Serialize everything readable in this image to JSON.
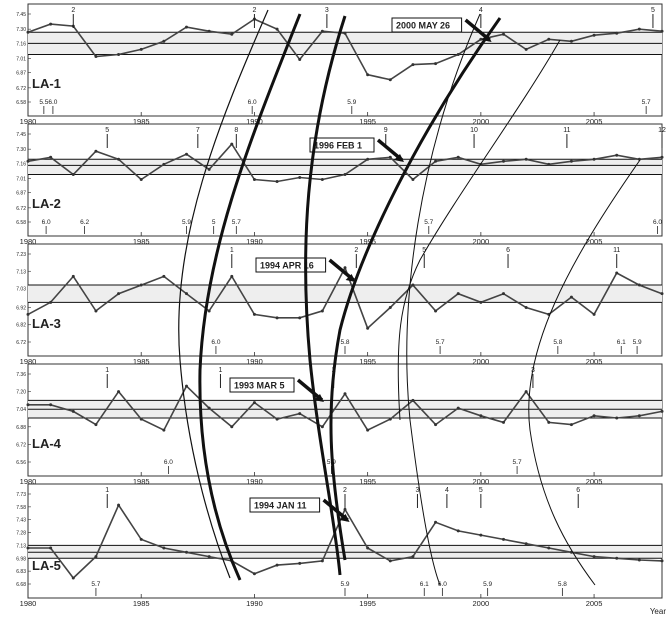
{
  "figure": {
    "year_axis_label": "Year",
    "year_ticks": [
      "1980",
      "1985",
      "1990",
      "1995",
      "2000",
      "2005"
    ]
  },
  "chart_data": [
    {
      "type": "line",
      "panel": "LA-1",
      "title": "LA-1",
      "x_range": [
        1980,
        2008
      ],
      "y_ticks": [
        "7.45",
        "7.30",
        "7.16",
        "7.01",
        "6.87",
        "6.72",
        "6.58"
      ],
      "reference_lines": [
        7.27,
        7.16,
        7.05
      ],
      "annotation": "2000 MAY 26",
      "marker_labels": [
        {
          "year": 1982,
          "label": "2"
        },
        {
          "year": 1990,
          "label": "2"
        },
        {
          "year": 1993.2,
          "label": "3"
        },
        {
          "year": 2000,
          "label": "4"
        },
        {
          "year": 2007.6,
          "label": "5"
        }
      ],
      "magnitude_labels": [
        {
          "year": 1980.7,
          "label": "5.5"
        },
        {
          "year": 1981.1,
          "label": "6.0"
        },
        {
          "year": 1989.9,
          "label": "6.0"
        },
        {
          "year": 1994.3,
          "label": "5.9"
        },
        {
          "year": 2007.3,
          "label": "5.7"
        }
      ],
      "series": [
        {
          "x": [
            1980,
            1981,
            1982,
            1983,
            1984,
            1985,
            1986,
            1987,
            1988,
            1989,
            1990,
            1991,
            1992,
            1993,
            1994,
            1995,
            1996,
            1997,
            1998,
            1999,
            2000,
            2001,
            2002,
            2003,
            2004,
            2005,
            2006,
            2007,
            2008
          ],
          "y": [
            7.27,
            7.35,
            7.33,
            7.03,
            7.05,
            7.1,
            7.18,
            7.32,
            7.28,
            7.25,
            7.4,
            7.3,
            7.0,
            7.28,
            7.26,
            6.85,
            6.8,
            6.95,
            6.96,
            7.05,
            7.2,
            7.25,
            7.1,
            7.2,
            7.18,
            7.24,
            7.26,
            7.3,
            7.28
          ]
        }
      ]
    },
    {
      "type": "line",
      "panel": "LA-2",
      "title": "LA-2",
      "x_range": [
        1980,
        2008
      ],
      "y_ticks": [
        "7.45",
        "7.30",
        "7.16",
        "7.01",
        "6.87",
        "6.72",
        "6.58"
      ],
      "reference_lines": [
        7.2,
        7.14,
        7.05
      ],
      "annotation": "1996 FEB 1",
      "marker_labels": [
        {
          "year": 1983.5,
          "label": "5"
        },
        {
          "year": 1987.5,
          "label": "7"
        },
        {
          "year": 1989.2,
          "label": "8"
        },
        {
          "year": 1995.8,
          "label": "9"
        },
        {
          "year": 1999.7,
          "label": "10"
        },
        {
          "year": 2003.8,
          "label": "11"
        },
        {
          "year": 2008,
          "label": "12"
        }
      ],
      "magnitude_labels": [
        {
          "year": 1980.8,
          "label": "6.0"
        },
        {
          "year": 1982.5,
          "label": "6.2"
        },
        {
          "year": 1987.0,
          "label": "5.9"
        },
        {
          "year": 1988.2,
          "label": "5"
        },
        {
          "year": 1989.2,
          "label": "5.7"
        },
        {
          "year": 1997.7,
          "label": "5.7"
        },
        {
          "year": 2007.8,
          "label": "6.0"
        }
      ],
      "series": [
        {
          "x": [
            1980,
            1981,
            1982,
            1983,
            1984,
            1985,
            1986,
            1987,
            1988,
            1989,
            1990,
            1991,
            1992,
            1993,
            1994,
            1995,
            1996,
            1997,
            1998,
            1999,
            2000,
            2001,
            2002,
            2003,
            2004,
            2005,
            2006,
            2007,
            2008
          ],
          "y": [
            7.18,
            7.22,
            7.05,
            7.28,
            7.2,
            7.0,
            7.15,
            7.25,
            7.1,
            7.35,
            7.0,
            6.98,
            7.02,
            7.0,
            7.05,
            7.2,
            7.22,
            7.0,
            7.18,
            7.22,
            7.15,
            7.18,
            7.2,
            7.15,
            7.18,
            7.2,
            7.24,
            7.2,
            7.22
          ]
        }
      ]
    },
    {
      "type": "line",
      "panel": "LA-3",
      "title": "LA-3",
      "x_range": [
        1980,
        2008
      ],
      "y_ticks": [
        "7.23",
        "7.13",
        "7.03",
        "6.92",
        "6.82",
        "6.72"
      ],
      "reference_lines": [
        7.05,
        6.95
      ],
      "annotation": "1994 APR 16",
      "marker_labels": [
        {
          "year": 1989,
          "label": "1"
        },
        {
          "year": 1994.5,
          "label": "2"
        },
        {
          "year": 1997.5,
          "label": "5"
        },
        {
          "year": 2001.2,
          "label": "6"
        },
        {
          "year": 2006,
          "label": "11"
        }
      ],
      "magnitude_labels": [
        {
          "year": 1988.3,
          "label": "6.0"
        },
        {
          "year": 1994.0,
          "label": "5.8"
        },
        {
          "year": 1998.2,
          "label": "5.7"
        },
        {
          "year": 2003.4,
          "label": "5.8"
        },
        {
          "year": 2006.2,
          "label": "6.1"
        },
        {
          "year": 2006.9,
          "label": "5.9"
        }
      ],
      "series": [
        {
          "x": [
            1980,
            1981,
            1982,
            1983,
            1984,
            1985,
            1986,
            1987,
            1988,
            1989,
            1990,
            1991,
            1992,
            1993,
            1994,
            1995,
            1996,
            1997,
            1998,
            1999,
            2000,
            2001,
            2002,
            2003,
            2004,
            2005,
            2006,
            2007,
            2008
          ],
          "y": [
            6.88,
            6.95,
            7.1,
            6.9,
            7.0,
            7.05,
            7.1,
            7.0,
            6.9,
            7.1,
            6.88,
            6.86,
            6.86,
            6.9,
            7.15,
            6.8,
            6.92,
            7.05,
            6.9,
            7.0,
            6.95,
            7.0,
            6.92,
            6.88,
            6.98,
            6.88,
            7.12,
            7.05,
            7.0
          ]
        }
      ]
    },
    {
      "type": "line",
      "panel": "LA-4",
      "title": "LA-4",
      "x_range": [
        1980,
        2008
      ],
      "y_ticks": [
        "7.36",
        "7.20",
        "7.04",
        "6.88",
        "6.72",
        "6.56"
      ],
      "reference_lines": [
        7.12,
        7.04,
        6.96
      ],
      "annotation": "1993 MAR 5",
      "marker_labels": [
        {
          "year": 1983.5,
          "label": "1"
        },
        {
          "year": 1988.5,
          "label": "1"
        },
        {
          "year": 1993.5,
          "label": "2"
        },
        {
          "year": 2002.3,
          "label": "3"
        }
      ],
      "magnitude_labels": [
        {
          "year": 1986.2,
          "label": "6.0"
        },
        {
          "year": 1993.4,
          "label": "5.9"
        },
        {
          "year": 2001.6,
          "label": "5.7"
        }
      ],
      "series": [
        {
          "x": [
            1980,
            1981,
            1982,
            1983,
            1984,
            1985,
            1986,
            1987,
            1988,
            1989,
            1990,
            1991,
            1992,
            1993,
            1994,
            1995,
            1996,
            1997,
            1998,
            1999,
            2000,
            2001,
            2002,
            2003,
            2004,
            2005,
            2006,
            2007,
            2008
          ],
          "y": [
            7.08,
            7.08,
            7.02,
            6.9,
            7.2,
            6.95,
            6.85,
            7.25,
            7.05,
            6.88,
            7.1,
            6.95,
            7.0,
            6.88,
            7.18,
            6.85,
            6.95,
            7.12,
            6.9,
            7.05,
            6.98,
            6.92,
            7.2,
            6.92,
            6.9,
            6.98,
            6.96,
            6.98,
            7.02
          ]
        }
      ]
    },
    {
      "type": "line",
      "panel": "LA-5",
      "title": "LA-5",
      "x_range": [
        1980,
        2008
      ],
      "y_ticks": [
        "7.73",
        "7.58",
        "7.43",
        "7.28",
        "7.13",
        "6.98",
        "6.83",
        "6.68"
      ],
      "reference_lines": [
        7.13,
        7.05,
        6.98
      ],
      "annotation": "1994 JAN 11",
      "marker_labels": [
        {
          "year": 1983.5,
          "label": "1"
        },
        {
          "year": 1994.0,
          "label": "2"
        },
        {
          "year": 1997.2,
          "label": "3"
        },
        {
          "year": 1998.5,
          "label": "4"
        },
        {
          "year": 2000,
          "label": "5"
        },
        {
          "year": 2004.3,
          "label": "6"
        }
      ],
      "magnitude_labels": [
        {
          "year": 1983.0,
          "label": "5.7"
        },
        {
          "year": 1994.0,
          "label": "5.9"
        },
        {
          "year": 1997.5,
          "label": "6.1"
        },
        {
          "year": 1998.3,
          "label": "6.0"
        },
        {
          "year": 2000.3,
          "label": "5.9"
        },
        {
          "year": 2003.6,
          "label": "5.8"
        }
      ],
      "series": [
        {
          "x": [
            1980,
            1981,
            1982,
            1983,
            1984,
            1985,
            1986,
            1987,
            1988,
            1989,
            1990,
            1991,
            1992,
            1993,
            1994,
            1995,
            1996,
            1997,
            1998,
            1999,
            2000,
            2001,
            2002,
            2003,
            2004,
            2005,
            2006,
            2007,
            2008
          ],
          "y": [
            7.1,
            7.1,
            6.75,
            7.0,
            7.6,
            7.2,
            7.1,
            7.05,
            7.0,
            6.95,
            6.8,
            6.9,
            6.92,
            6.95,
            7.55,
            7.1,
            6.95,
            7.0,
            7.4,
            7.3,
            7.25,
            7.2,
            7.15,
            7.1,
            7.05,
            7.0,
            6.98,
            6.96,
            6.95
          ]
        }
      ]
    }
  ]
}
